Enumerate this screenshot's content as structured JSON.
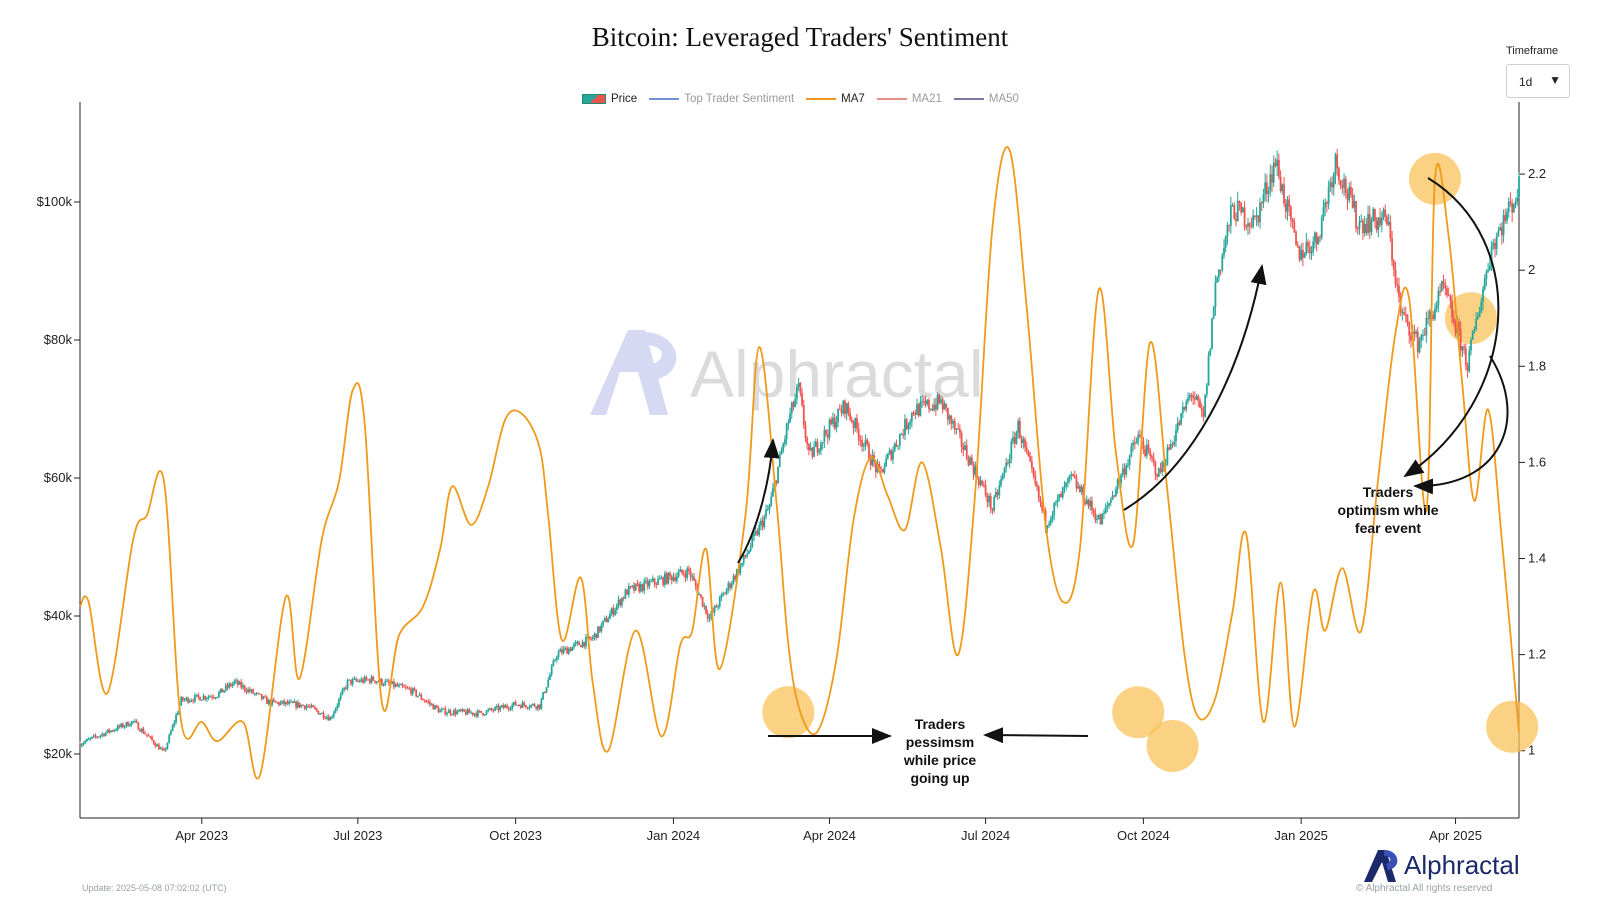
{
  "title": "Bitcoin: Leveraged Traders' Sentiment",
  "timeframe": {
    "label": "Timeframe",
    "value": "1d"
  },
  "legend": [
    {
      "label": "Price",
      "kind": "candle",
      "active": true
    },
    {
      "label": "Top Trader Sentiment",
      "kind": "line",
      "color": "#6f8fd6",
      "active": false
    },
    {
      "label": "MA7",
      "kind": "line",
      "color": "#ef9a1a",
      "active": true
    },
    {
      "label": "MA21",
      "kind": "line",
      "color": "#e58f8a",
      "active": false
    },
    {
      "label": "MA50",
      "kind": "line",
      "color": "#7a7aa0",
      "active": false
    }
  ],
  "watermark": "Alphractal",
  "brand": "Alphractal",
  "footer": {
    "update": "Update: 2025-05-08 07:02:02 (UTC)",
    "copyright": "© Alphractal All rights reserved"
  },
  "colors": {
    "up": "#26a69a",
    "down": "#ef5350",
    "ma7": "#ef9a1a",
    "highlight": "#f9c35a",
    "brand": "#1c2a6b"
  },
  "chart_data": {
    "type": "line",
    "x_ticks": [
      "Apr 2023",
      "Jul 2023",
      "Oct 2023",
      "Jan 2024",
      "Apr 2024",
      "Jul 2024",
      "Oct 2024",
      "Jan 2025",
      "Apr 2025"
    ],
    "y_left_ticks": [
      "$20k",
      "$40k",
      "$60k",
      "$80k",
      "$100k"
    ],
    "y_left_range": [
      10000,
      110000
    ],
    "y_right_ticks": [
      "1",
      "1.2",
      "1.4",
      "1.6",
      "1.8",
      "2",
      "2.2"
    ],
    "y_right_range": [
      0.86,
      2.35
    ],
    "x_range": [
      "2023-01-20",
      "2025-05-08"
    ],
    "series": [
      {
        "name": "Price",
        "type": "candlestick",
        "points": [
          [
            "2023-01-20",
            21500
          ],
          [
            "2023-02-05",
            23200
          ],
          [
            "2023-02-20",
            24700
          ],
          [
            "2023-03-10",
            20200
          ],
          [
            "2023-03-20",
            27800
          ],
          [
            "2023-04-10",
            28600
          ],
          [
            "2023-04-20",
            30400
          ],
          [
            "2023-05-10",
            27500
          ],
          [
            "2023-06-01",
            27000
          ],
          [
            "2023-06-15",
            25200
          ],
          [
            "2023-06-25",
            30400
          ],
          [
            "2023-07-10",
            30800
          ],
          [
            "2023-08-01",
            29200
          ],
          [
            "2023-08-18",
            26200
          ],
          [
            "2023-09-10",
            25900
          ],
          [
            "2023-10-01",
            27200
          ],
          [
            "2023-10-15",
            27000
          ],
          [
            "2023-10-25",
            34500
          ],
          [
            "2023-11-15",
            36800
          ],
          [
            "2023-12-05",
            43600
          ],
          [
            "2024-01-10",
            46500
          ],
          [
            "2024-01-22",
            39700
          ],
          [
            "2024-02-10",
            47600
          ],
          [
            "2024-02-26",
            55800
          ],
          [
            "2024-03-08",
            68200
          ],
          [
            "2024-03-14",
            73000
          ],
          [
            "2024-03-20",
            63000
          ],
          [
            "2024-04-10",
            70500
          ],
          [
            "2024-04-30",
            60500
          ],
          [
            "2024-05-20",
            69800
          ],
          [
            "2024-06-05",
            71000
          ],
          [
            "2024-06-25",
            61000
          ],
          [
            "2024-07-05",
            55500
          ],
          [
            "2024-07-20",
            67500
          ],
          [
            "2024-08-05",
            53500
          ],
          [
            "2024-08-20",
            60000
          ],
          [
            "2024-09-06",
            53600
          ],
          [
            "2024-09-28",
            66000
          ],
          [
            "2024-10-10",
            60500
          ],
          [
            "2024-10-29",
            72500
          ],
          [
            "2024-11-05",
            68500
          ],
          [
            "2024-11-12",
            88000
          ],
          [
            "2024-11-22",
            99000
          ],
          [
            "2024-12-05",
            97000
          ],
          [
            "2024-12-17",
            106000
          ],
          [
            "2024-12-30",
            92500
          ],
          [
            "2025-01-10",
            94500
          ],
          [
            "2025-01-21",
            106000
          ],
          [
            "2025-02-03",
            97000
          ],
          [
            "2025-02-20",
            97500
          ],
          [
            "2025-02-28",
            84000
          ],
          [
            "2025-03-10",
            79500
          ],
          [
            "2025-03-25",
            87500
          ],
          [
            "2025-04-08",
            76500
          ],
          [
            "2025-04-22",
            93500
          ],
          [
            "2025-05-08",
            102000
          ]
        ]
      },
      {
        "name": "MA7",
        "points": [
          [
            "2023-01-20",
            1.3
          ],
          [
            "2023-01-25",
            1.31
          ],
          [
            "2023-02-05",
            1.12
          ],
          [
            "2023-02-20",
            1.44
          ],
          [
            "2023-02-28",
            1.49
          ],
          [
            "2023-03-10",
            1.56
          ],
          [
            "2023-03-20",
            1.06
          ],
          [
            "2023-04-01",
            1.06
          ],
          [
            "2023-04-10",
            1.02
          ],
          [
            "2023-04-25",
            1.06
          ],
          [
            "2023-05-05",
            0.95
          ],
          [
            "2023-05-20",
            1.32
          ],
          [
            "2023-05-28",
            1.15
          ],
          [
            "2023-06-10",
            1.44
          ],
          [
            "2023-06-20",
            1.56
          ],
          [
            "2023-06-28",
            1.75
          ],
          [
            "2023-07-05",
            1.68
          ],
          [
            "2023-07-15",
            1.1
          ],
          [
            "2023-07-25",
            1.24
          ],
          [
            "2023-08-08",
            1.3
          ],
          [
            "2023-08-18",
            1.42
          ],
          [
            "2023-08-25",
            1.55
          ],
          [
            "2023-09-05",
            1.47
          ],
          [
            "2023-09-15",
            1.55
          ],
          [
            "2023-09-25",
            1.69
          ],
          [
            "2023-10-05",
            1.7
          ],
          [
            "2023-10-15",
            1.63
          ],
          [
            "2023-10-20",
            1.49
          ],
          [
            "2023-10-28",
            1.23
          ],
          [
            "2023-11-08",
            1.36
          ],
          [
            "2023-11-15",
            1.14
          ],
          [
            "2023-11-24",
            1.0
          ],
          [
            "2023-12-10",
            1.25
          ],
          [
            "2023-12-25",
            1.03
          ],
          [
            "2024-01-05",
            1.22
          ],
          [
            "2024-01-12",
            1.25
          ],
          [
            "2024-01-20",
            1.42
          ],
          [
            "2024-01-28",
            1.17
          ],
          [
            "2024-02-12",
            1.49
          ],
          [
            "2024-02-20",
            1.84
          ],
          [
            "2024-03-01",
            1.52
          ],
          [
            "2024-03-08",
            1.22
          ],
          [
            "2024-03-15",
            1.08
          ],
          [
            "2024-03-25",
            1.04
          ],
          [
            "2024-04-05",
            1.19
          ],
          [
            "2024-04-15",
            1.48
          ],
          [
            "2024-04-25",
            1.61
          ],
          [
            "2024-05-05",
            1.53
          ],
          [
            "2024-05-15",
            1.46
          ],
          [
            "2024-05-25",
            1.6
          ],
          [
            "2024-06-05",
            1.42
          ],
          [
            "2024-06-15",
            1.2
          ],
          [
            "2024-06-25",
            1.54
          ],
          [
            "2024-07-05",
            2.09
          ],
          [
            "2024-07-15",
            2.25
          ],
          [
            "2024-07-25",
            1.92
          ],
          [
            "2024-08-05",
            1.47
          ],
          [
            "2024-08-15",
            1.31
          ],
          [
            "2024-08-25",
            1.42
          ],
          [
            "2024-09-05",
            1.96
          ],
          [
            "2024-09-15",
            1.62
          ],
          [
            "2024-09-25",
            1.43
          ],
          [
            "2024-10-05",
            1.85
          ],
          [
            "2024-10-15",
            1.54
          ],
          [
            "2024-10-25",
            1.2
          ],
          [
            "2024-11-02",
            1.07
          ],
          [
            "2024-11-12",
            1.11
          ],
          [
            "2024-11-22",
            1.29
          ],
          [
            "2024-11-30",
            1.45
          ],
          [
            "2024-12-10",
            1.06
          ],
          [
            "2024-12-20",
            1.35
          ],
          [
            "2024-12-28",
            1.05
          ],
          [
            "2025-01-08",
            1.33
          ],
          [
            "2025-01-15",
            1.25
          ],
          [
            "2025-01-25",
            1.38
          ],
          [
            "2025-02-05",
            1.25
          ],
          [
            "2025-02-15",
            1.57
          ],
          [
            "2025-02-25",
            1.87
          ],
          [
            "2025-03-05",
            1.94
          ],
          [
            "2025-03-15",
            1.5
          ],
          [
            "2025-03-20",
            2.19
          ],
          [
            "2025-03-28",
            2.07
          ],
          [
            "2025-04-05",
            1.76
          ],
          [
            "2025-04-12",
            1.52
          ],
          [
            "2025-04-20",
            1.71
          ],
          [
            "2025-04-28",
            1.44
          ],
          [
            "2025-05-08",
            1.04
          ]
        ]
      }
    ]
  },
  "annotations": {
    "pessimism": [
      "Traders",
      "pessimsm",
      "while price",
      "going up"
    ],
    "optimism": [
      "Traders",
      "optimism while",
      "fear event"
    ]
  }
}
